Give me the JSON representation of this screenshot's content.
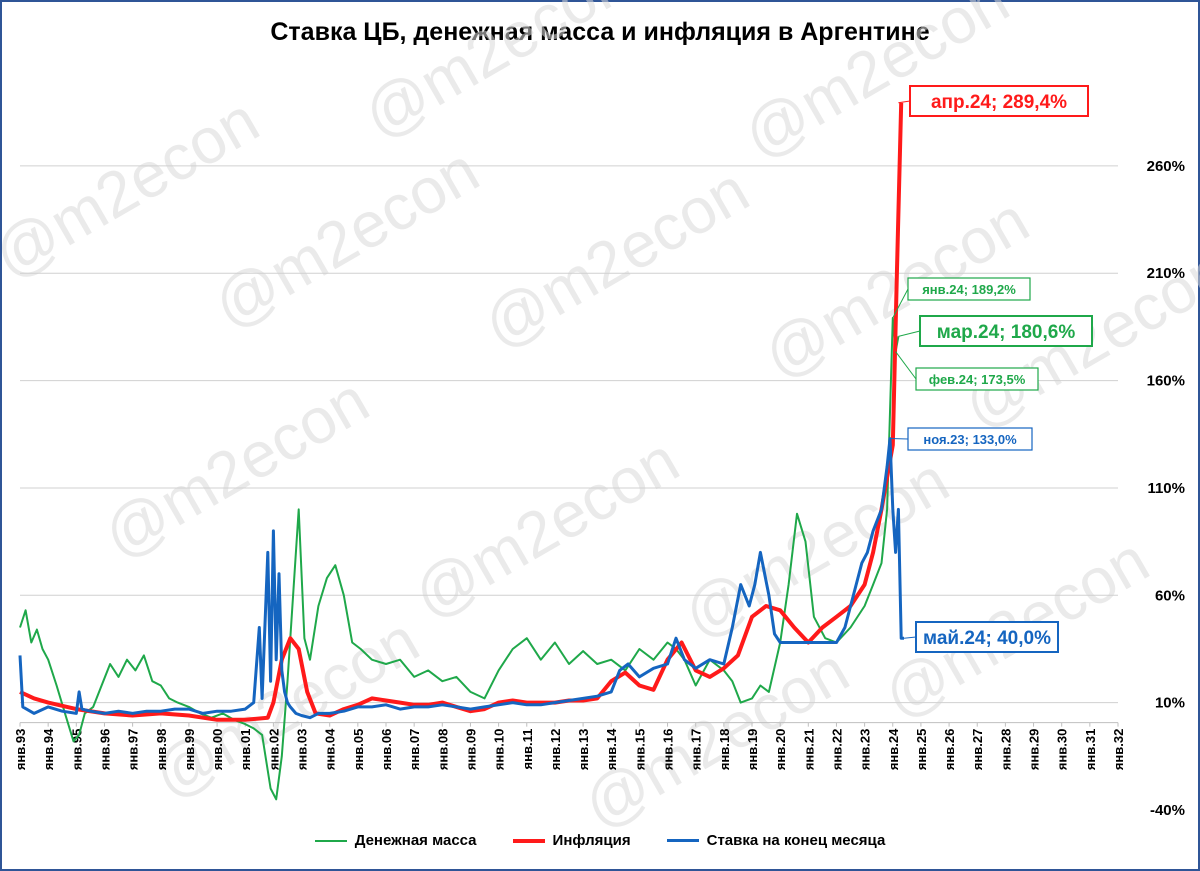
{
  "chart_data": {
    "type": "line",
    "title": "Ставка ЦБ, денежная масса и инфляция в Аргентине",
    "watermark": "@m2econ",
    "y_ticks": [
      "-40%",
      "10%",
      "60%",
      "110%",
      "160%",
      "210%",
      "260%"
    ],
    "y_tick_values": [
      -40,
      10,
      60,
      110,
      160,
      210,
      260
    ],
    "ylim": [
      -40,
      300
    ],
    "y_axis_side": "right",
    "grid": true,
    "legend_position": "bottom",
    "x_ticks": [
      "янв.93",
      "янв.94",
      "янв.95",
      "янв.96",
      "янв.97",
      "янв.98",
      "янв.99",
      "янв.00",
      "янв.01",
      "янв.02",
      "янв.03",
      "янв.04",
      "янв.05",
      "янв.06",
      "янв.07",
      "янв.08",
      "янв.09",
      "янв.10",
      "янв.11",
      "янв.12",
      "янв.13",
      "янв.14",
      "янв.15",
      "янв.16",
      "янв.17",
      "янв.18",
      "янв.19",
      "янв.20",
      "янв.21",
      "янв.22",
      "янв.23",
      "янв.24",
      "янв.25",
      "янв.26",
      "янв.27",
      "янв.28",
      "янв.29",
      "янв.30",
      "янв.31",
      "янв.32"
    ],
    "xlim": [
      1993,
      2032
    ],
    "colors": {
      "money": "#1fa84a",
      "inflation": "#ff1a1a",
      "rate": "#1565c0"
    },
    "series": [
      {
        "name": "Денежная масса",
        "key": "money",
        "x": [
          1993.0,
          1993.2,
          1993.4,
          1993.6,
          1993.8,
          1994.0,
          1994.3,
          1994.6,
          1994.9,
          1995.1,
          1995.3,
          1995.6,
          1995.9,
          1996.2,
          1996.5,
          1996.8,
          1997.1,
          1997.4,
          1997.7,
          1998.0,
          1998.3,
          1998.6,
          1999.0,
          1999.4,
          1999.8,
          2000.2,
          2000.6,
          2001.0,
          2001.3,
          2001.6,
          2001.9,
          2002.1,
          2002.3,
          2002.5,
          2002.7,
          2002.9,
          2003.1,
          2003.3,
          2003.6,
          2003.9,
          2004.2,
          2004.5,
          2004.8,
          2005.1,
          2005.5,
          2006.0,
          2006.5,
          2007.0,
          2007.5,
          2008.0,
          2008.5,
          2009.0,
          2009.5,
          2010.0,
          2010.5,
          2011.0,
          2011.5,
          2012.0,
          2012.5,
          2013.0,
          2013.5,
          2014.0,
          2014.5,
          2015.0,
          2015.5,
          2016.0,
          2016.3,
          2016.6,
          2017.0,
          2017.5,
          2018.0,
          2018.3,
          2018.6,
          2019.0,
          2019.3,
          2019.6,
          2020.0,
          2020.3,
          2020.6,
          2020.9,
          2021.2,
          2021.6,
          2022.0,
          2022.5,
          2023.0,
          2023.3,
          2023.6,
          2023.8,
          2024.0,
          2024.1,
          2024.2
        ],
        "values": [
          45,
          53,
          38,
          44,
          35,
          30,
          18,
          5,
          -8,
          -5,
          5,
          8,
          18,
          28,
          22,
          30,
          25,
          32,
          20,
          18,
          12,
          10,
          8,
          5,
          3,
          5,
          2,
          0,
          -2,
          -5,
          -30,
          -35,
          -15,
          20,
          60,
          100,
          40,
          30,
          55,
          68,
          74,
          60,
          38,
          35,
          30,
          28,
          30,
          22,
          25,
          20,
          22,
          15,
          12,
          25,
          35,
          40,
          30,
          38,
          28,
          34,
          28,
          30,
          25,
          35,
          30,
          38,
          35,
          30,
          18,
          30,
          25,
          20,
          10,
          12,
          18,
          15,
          38,
          65,
          98,
          85,
          50,
          40,
          38,
          45,
          55,
          65,
          75,
          100,
          189.2,
          173.5,
          180.6
        ],
        "width": 2
      },
      {
        "name": "Инфляция",
        "key": "inflation",
        "x": [
          1993.0,
          1993.5,
          1994.0,
          1995.0,
          1996.0,
          1997.0,
          1998.0,
          1999.0,
          2000.0,
          2001.0,
          2001.8,
          2002.0,
          2002.3,
          2002.6,
          2002.9,
          2003.2,
          2003.5,
          2004.0,
          2004.5,
          2005.0,
          2005.5,
          2006.0,
          2006.5,
          2007.0,
          2007.5,
          2008.0,
          2008.5,
          2009.0,
          2009.5,
          2010.0,
          2010.5,
          2011.0,
          2011.5,
          2012.0,
          2012.5,
          2013.0,
          2013.5,
          2014.0,
          2014.5,
          2015.0,
          2015.5,
          2016.0,
          2016.5,
          2017.0,
          2017.5,
          2018.0,
          2018.5,
          2019.0,
          2019.5,
          2020.0,
          2020.5,
          2021.0,
          2021.5,
          2022.0,
          2022.5,
          2023.0,
          2023.3,
          2023.6,
          2023.8,
          2024.0,
          2024.15,
          2024.3
        ],
        "values": [
          15,
          12,
          10,
          7,
          5,
          4,
          5,
          4,
          2,
          2,
          3,
          10,
          30,
          40,
          35,
          15,
          5,
          4,
          7,
          9,
          12,
          11,
          10,
          9,
          9,
          10,
          8,
          6,
          7,
          10,
          11,
          10,
          10,
          10,
          11,
          11,
          12,
          20,
          24,
          18,
          16,
          30,
          38,
          25,
          22,
          26,
          32,
          50,
          55,
          53,
          45,
          38,
          45,
          50,
          55,
          65,
          80,
          100,
          115,
          130,
          212,
          289.4
        ],
        "width": 4
      },
      {
        "name": "Ставка на конец месяца",
        "key": "rate",
        "x": [
          1993.0,
          1993.1,
          1993.5,
          1994.0,
          1994.5,
          1995.0,
          1995.1,
          1995.2,
          1995.5,
          1996.0,
          1996.5,
          1997.0,
          1997.5,
          1998.0,
          1998.5,
          1999.0,
          1999.5,
          2000.0,
          2000.5,
          2001.0,
          2001.3,
          2001.5,
          2001.6,
          2001.8,
          2001.9,
          2002.0,
          2002.1,
          2002.2,
          2002.3,
          2002.4,
          2002.5,
          2002.6,
          2002.8,
          2003.0,
          2003.3,
          2003.6,
          2004.0,
          2004.5,
          2005.0,
          2005.5,
          2006.0,
          2006.5,
          2007.0,
          2007.5,
          2008.0,
          2008.5,
          2009.0,
          2009.5,
          2010.0,
          2010.5,
          2011.0,
          2011.5,
          2012.0,
          2012.5,
          2013.0,
          2013.5,
          2014.0,
          2014.3,
          2014.6,
          2015.0,
          2015.5,
          2016.0,
          2016.3,
          2016.6,
          2017.0,
          2017.5,
          2018.0,
          2018.3,
          2018.6,
          2018.9,
          2019.1,
          2019.3,
          2019.6,
          2019.8,
          2020.0,
          2020.3,
          2020.6,
          2021.0,
          2021.5,
          2022.0,
          2022.3,
          2022.6,
          2022.9,
          2023.1,
          2023.3,
          2023.6,
          2023.8,
          2023.9,
          2024.0,
          2024.1,
          2024.2,
          2024.3,
          2024.4
        ],
        "values": [
          32,
          8,
          5,
          8,
          6,
          5,
          15,
          7,
          6,
          5,
          6,
          5,
          6,
          6,
          7,
          7,
          5,
          6,
          6,
          7,
          10,
          45,
          12,
          80,
          20,
          90,
          30,
          70,
          25,
          15,
          10,
          8,
          5,
          4,
          3,
          5,
          5,
          6,
          8,
          8,
          9,
          7,
          8,
          8,
          9,
          8,
          7,
          8,
          9,
          10,
          9,
          9,
          10,
          11,
          12,
          13,
          15,
          25,
          28,
          22,
          26,
          28,
          40,
          30,
          26,
          30,
          28,
          45,
          65,
          55,
          65,
          80,
          60,
          42,
          38,
          38,
          38,
          38,
          38,
          38,
          45,
          60,
          75,
          80,
          90,
          100,
          120,
          133,
          100,
          80,
          100,
          40,
          40
        ],
        "width": 3
      }
    ],
    "annotations": [
      {
        "text": "апр.24; 289,4%",
        "series": "inflation",
        "size": "large"
      },
      {
        "text": "янв.24; 189,2%",
        "series": "money",
        "size": "small"
      },
      {
        "text": "мар.24; 180,6%",
        "series": "money",
        "size": "large"
      },
      {
        "text": "фев.24; 173,5%",
        "series": "money",
        "size": "small"
      },
      {
        "text": "ноя.23; 133,0%",
        "series": "rate",
        "size": "small"
      },
      {
        "text": "май.24; 40,0%",
        "series": "rate",
        "size": "large"
      }
    ]
  }
}
